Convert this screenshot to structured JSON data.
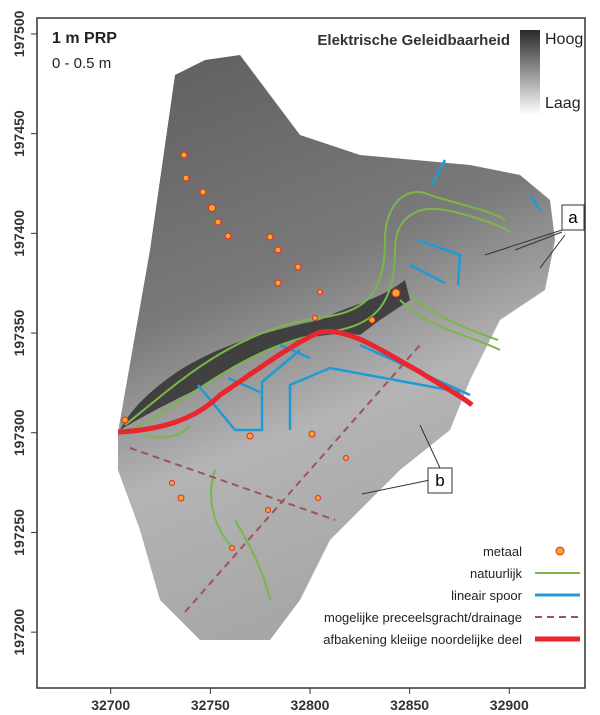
{
  "map": {
    "title": "1 m PRP",
    "subtitle": "0 - 0.5 m",
    "variable": "Elektrische Geleidbaarheid",
    "scale_high": "Hoog",
    "scale_low": "Laag",
    "xlim": [
      32663,
      32938
    ],
    "ylim": [
      197172,
      197508
    ],
    "xticks": [
      32700,
      32750,
      32800,
      32850,
      32900
    ],
    "yticks": [
      197200,
      197250,
      197300,
      197350,
      197400,
      197450,
      197500
    ],
    "callouts": [
      "a",
      "b"
    ],
    "legend": [
      {
        "label": "metaal",
        "color": "#f5a623"
      },
      {
        "label": "natuurlijk",
        "color": "#7ab648"
      },
      {
        "label": "lineair spoor",
        "color": "#1f9ad6"
      },
      {
        "label": "mogelijke preceelsgracht/drainage",
        "color": "#a0525a"
      },
      {
        "label": "afbakening kleiige noordelijke deel",
        "color": "#e8262e"
      }
    ]
  }
}
